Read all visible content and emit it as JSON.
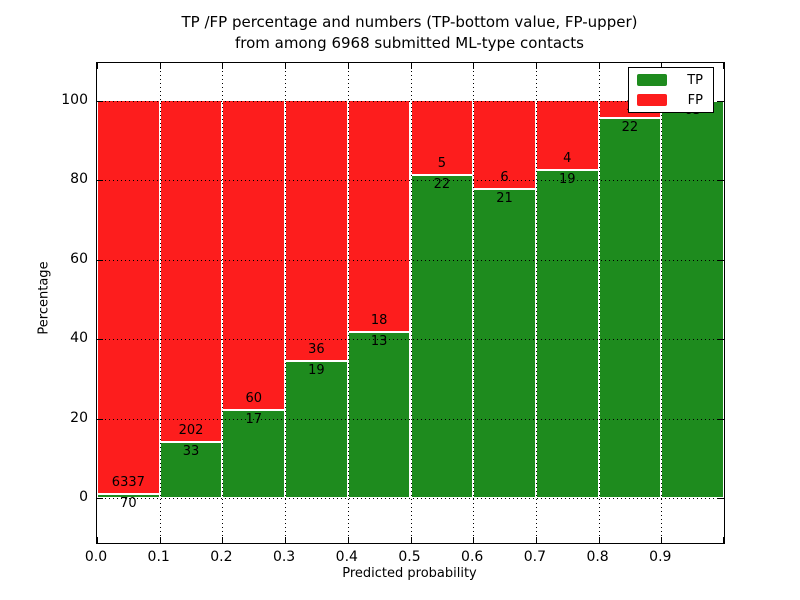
{
  "title": {
    "line1": "TP /FP percentage and numbers (TP-bottom value, FP-upper)",
    "line2": "from among 6968 submitted ML-type contacts"
  },
  "y_axis": {
    "label": "Percentage",
    "ticks": [
      0,
      20,
      40,
      60,
      80,
      100
    ]
  },
  "x_axis": {
    "label": "Predicted probability",
    "ticks": [
      "0.0",
      "0.1",
      "0.2",
      "0.3",
      "0.4",
      "0.5",
      "0.6",
      "0.7",
      "0.8",
      "0.9"
    ]
  },
  "legend": {
    "items": [
      {
        "label": "TP",
        "color": "#1e8b1e"
      },
      {
        "label": "FP",
        "color": "#fd1d1d"
      }
    ]
  },
  "colors": {
    "tp": "#1e8b1e",
    "fp": "#fd1d1d",
    "grid": "#000000",
    "background": "#ffffff"
  },
  "chart_data": {
    "type": "bar",
    "stacked": true,
    "percent_normalized": true,
    "title": "TP /FP percentage and numbers (TP-bottom value, FP-upper) from among 6968 submitted ML-type contacts",
    "xlabel": "Predicted probability",
    "ylabel": "Percentage",
    "total_contacts": 6968,
    "x_bin_edges": [
      0.0,
      0.1,
      0.2,
      0.3,
      0.4,
      0.5,
      0.6,
      0.7,
      0.8,
      0.9,
      1.0
    ],
    "categories": [
      "0.0-0.1",
      "0.1-0.2",
      "0.2-0.3",
      "0.3-0.4",
      "0.4-0.5",
      "0.5-0.6",
      "0.6-0.7",
      "0.7-0.8",
      "0.8-0.9",
      "0.9-1.0"
    ],
    "series": [
      {
        "name": "TP",
        "color": "#1e8b1e",
        "counts": [
          70,
          33,
          17,
          19,
          13,
          22,
          21,
          19,
          22,
          63
        ]
      },
      {
        "name": "FP",
        "color": "#fd1d1d",
        "counts": [
          6337,
          202,
          60,
          36,
          18,
          5,
          6,
          4,
          1,
          0
        ]
      }
    ],
    "tp_percent": [
      1.09,
      14.04,
      22.08,
      34.55,
      41.94,
      81.48,
      77.78,
      82.61,
      95.65,
      100.0
    ],
    "ylim": [
      -11.5,
      110
    ],
    "yticks": [
      0,
      20,
      40,
      60,
      80,
      100
    ],
    "grid": true,
    "grid_style": "dotted",
    "legend_position": "upper right"
  }
}
